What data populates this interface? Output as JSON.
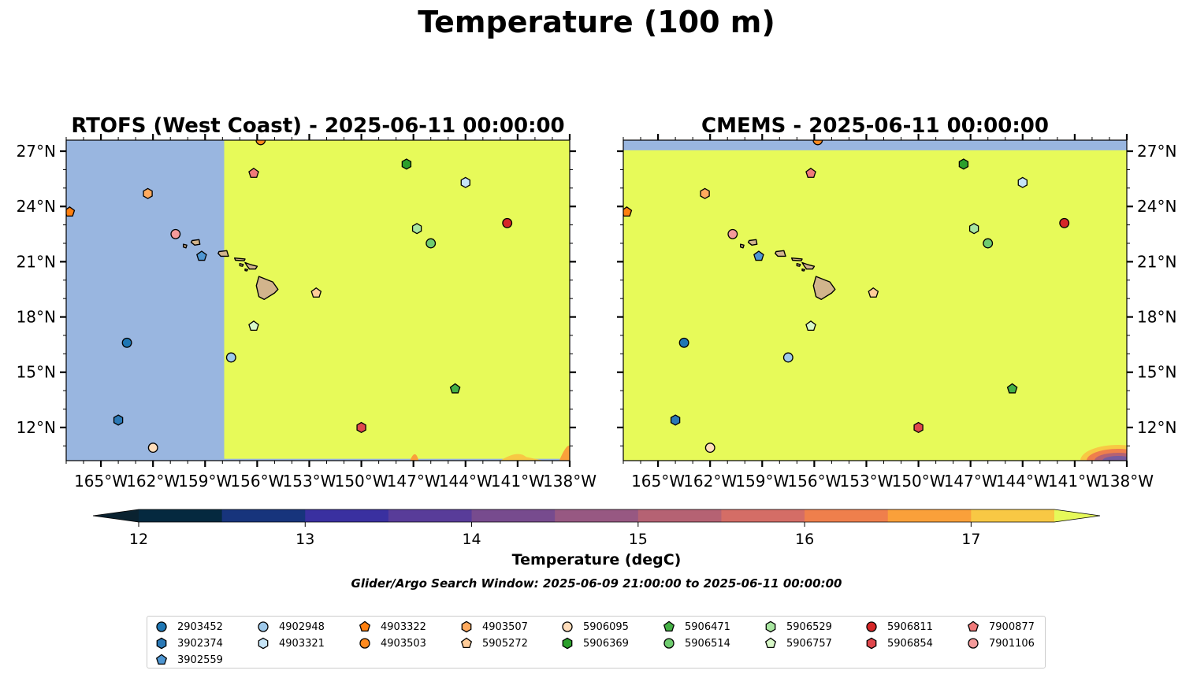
{
  "figure": {
    "title": "Temperature (100 m)",
    "caption": "Glider/Argo Search Window: 2025-06-09 21:00:00 to 2025-06-11 00:00:00"
  },
  "panels": [
    {
      "id": "rtofs",
      "title": "RTOFS (West Coast) - 2025-06-11 00:00:00",
      "lat_labels_side": "left"
    },
    {
      "id": "cmems",
      "title": "CMEMS - 2025-06-11 00:00:00",
      "lat_labels_side": "right"
    }
  ],
  "axes": {
    "lon_range": [
      -167,
      -138
    ],
    "lat_range": [
      10.2,
      27.6
    ],
    "lon_ticks": [
      "165°W",
      "162°W",
      "159°W",
      "156°W",
      "153°W",
      "150°W",
      "147°W",
      "144°W",
      "141°W",
      "138°W"
    ],
    "lon_tick_values": [
      -165,
      -162,
      -159,
      -156,
      -153,
      -150,
      -147,
      -144,
      -141,
      -138
    ],
    "lat_ticks": [
      "27°N",
      "24°N",
      "21°N",
      "18°N",
      "15°N",
      "12°N"
    ],
    "lat_tick_values": [
      27,
      24,
      21,
      18,
      15,
      12
    ]
  },
  "colorbar": {
    "label": "Temperature (degC)",
    "tick_labels": [
      "12",
      "13",
      "14",
      "15",
      "16",
      "17"
    ],
    "tick_values": [
      12,
      13,
      14,
      15,
      16,
      17
    ],
    "range": [
      11.75,
      17.5
    ],
    "bins": [
      {
        "from": 11.75,
        "to": 12.0,
        "color": "#0a2230"
      },
      {
        "from": 12.0,
        "to": 12.5,
        "color": "#05293f"
      },
      {
        "from": 12.5,
        "to": 13.0,
        "color": "#17347c"
      },
      {
        "from": 13.0,
        "to": 13.5,
        "color": "#3a30a0"
      },
      {
        "from": 13.5,
        "to": 14.0,
        "color": "#583c99"
      },
      {
        "from": 14.0,
        "to": 14.5,
        "color": "#774b8e"
      },
      {
        "from": 14.5,
        "to": 15.0,
        "color": "#975882"
      },
      {
        "from": 15.0,
        "to": 15.5,
        "color": "#b56273"
      },
      {
        "from": 15.5,
        "to": 16.0,
        "color": "#d46d66"
      },
      {
        "from": 16.0,
        "to": 16.5,
        "color": "#ef7f4c"
      },
      {
        "from": 16.5,
        "to": 17.0,
        "color": "#faa03a"
      },
      {
        "from": 17.0,
        "to": 17.5,
        "color": "#f8c844"
      }
    ],
    "extend_low_color": "#0a2230",
    "extend_high_color": "#e6f95a"
  },
  "colors": {
    "warm_field": "#e7fa59",
    "no_data": "#99b6e0",
    "land": "#d2b48c"
  },
  "stations": [
    {
      "id": "2903452",
      "marker": "circle",
      "color": "#1f77b4",
      "lon": -163.5,
      "lat": 16.6
    },
    {
      "id": "3902374",
      "marker": "hexagon",
      "color": "#2b79b6",
      "lon": -164.0,
      "lat": 12.4
    },
    {
      "id": "3902559",
      "marker": "pentagon",
      "color": "#4e96d2",
      "lon": -159.2,
      "lat": 21.3
    },
    {
      "id": "4902948",
      "marker": "circle",
      "color": "#9ec9ea",
      "lon": -157.5,
      "lat": 15.8
    },
    {
      "id": "4903321",
      "marker": "hexagon",
      "color": "#c6e4f7",
      "lon": -144.0,
      "lat": 25.3
    },
    {
      "id": "4903322",
      "marker": "pentagon",
      "color": "#ff7f0e",
      "lon": -166.8,
      "lat": 23.7
    },
    {
      "id": "4903503",
      "marker": "circle",
      "color": "#ff8a1e",
      "lon": -155.8,
      "lat": 27.6
    },
    {
      "id": "4903507",
      "marker": "hexagon",
      "color": "#ffaa5e",
      "lon": -162.3,
      "lat": 24.7
    },
    {
      "id": "5905272",
      "marker": "pentagon",
      "color": "#ffcc99",
      "lon": -152.6,
      "lat": 19.3
    },
    {
      "id": "5906095",
      "marker": "circle",
      "color": "#ffddbb",
      "lon": -162.0,
      "lat": 10.9
    },
    {
      "id": "5906369",
      "marker": "hexagon",
      "color": "#2ca02c",
      "lon": -147.4,
      "lat": 26.3
    },
    {
      "id": "5906471",
      "marker": "pentagon",
      "color": "#45b045",
      "lon": -144.6,
      "lat": 14.1
    },
    {
      "id": "5906514",
      "marker": "circle",
      "color": "#6fcc6f",
      "lon": -146.0,
      "lat": 22.0
    },
    {
      "id": "5906529",
      "marker": "hexagon",
      "color": "#a8e6a0",
      "lon": -146.8,
      "lat": 22.8
    },
    {
      "id": "5906757",
      "marker": "pentagon",
      "color": "#d8f8c8",
      "lon": -156.2,
      "lat": 17.5
    },
    {
      "id": "5906811",
      "marker": "circle",
      "color": "#d62728",
      "lon": -141.6,
      "lat": 23.1
    },
    {
      "id": "5906854",
      "marker": "hexagon",
      "color": "#e0474c",
      "lon": -150.0,
      "lat": 12.0
    },
    {
      "id": "7900877",
      "marker": "pentagon",
      "color": "#f07a7a",
      "lon": -156.2,
      "lat": 25.8
    },
    {
      "id": "7901106",
      "marker": "circle",
      "color": "#f49a9a",
      "lon": -160.7,
      "lat": 22.5
    }
  ],
  "legend_order": [
    "2903452",
    "4902948",
    "4903322",
    "4903507",
    "5906095",
    "5906471",
    "5906529",
    "5906811",
    "7900877",
    "3902374",
    "4903321",
    "4903503",
    "5905272",
    "5906369",
    "5906514",
    "5906757",
    "5906854",
    "7901106",
    "3902559"
  ]
}
